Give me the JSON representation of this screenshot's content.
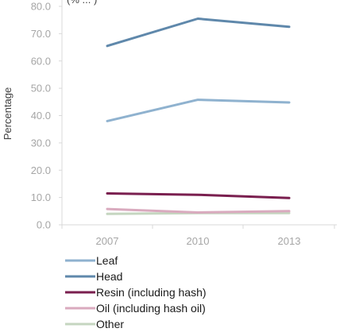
{
  "chart_data": {
    "type": "line",
    "title": "",
    "clipped_title_fragment": "(% ... )",
    "xlabel": "",
    "ylabel": "Percentage",
    "x": [
      "2007",
      "2010",
      "2013"
    ],
    "ylim": [
      0,
      80
    ],
    "yticks": [
      "0.0",
      "10.0",
      "20.0",
      "30.0",
      "40.0",
      "50.0",
      "60.0",
      "70.0",
      "80.0"
    ],
    "grid": false,
    "legend_placement": "bottom-left",
    "series": [
      {
        "name": "Leaf",
        "values": [
          38.0,
          45.8,
          44.8
        ],
        "color": "#8fb2cf"
      },
      {
        "name": "Head",
        "values": [
          65.5,
          75.5,
          72.5
        ],
        "color": "#5f88ab"
      },
      {
        "name": "Resin (including hash)",
        "values": [
          11.5,
          11.0,
          9.8
        ],
        "color": "#7a1f4f"
      },
      {
        "name": "Oil (including hash oil)",
        "values": [
          5.8,
          4.5,
          5.0
        ],
        "color": "#d9aabe"
      },
      {
        "name": "Other",
        "values": [
          4.0,
          4.3,
          4.3
        ],
        "color": "#c5d6c0"
      }
    ]
  }
}
